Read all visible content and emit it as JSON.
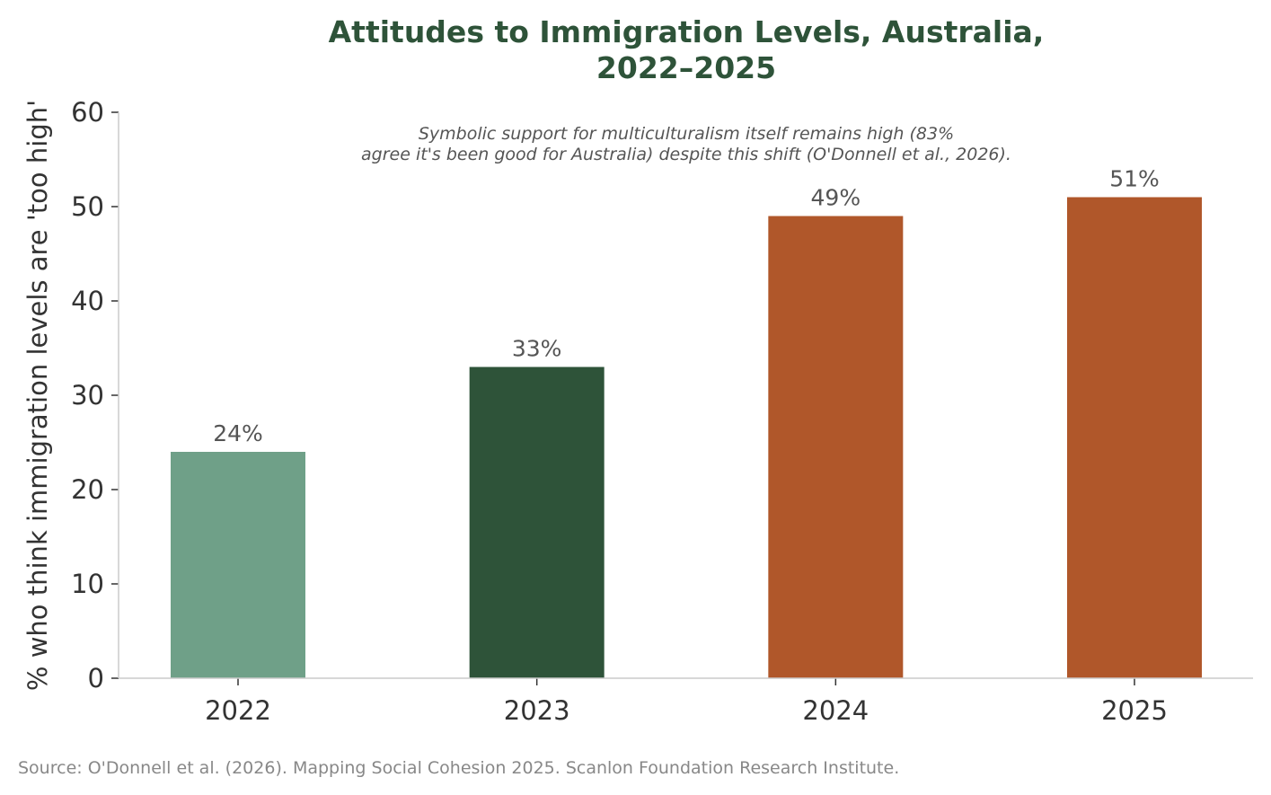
{
  "chart_data": {
    "type": "bar",
    "title_lines": [
      "Attitudes to Immigration Levels, Australia,",
      "2022–2025"
    ],
    "annotation_lines": [
      "Symbolic support for multiculturalism itself remains high (83%",
      "agree it's been good for Australia) despite this shift (O'Donnell et al., 2026)."
    ],
    "categories": [
      "2022",
      "2023",
      "2024",
      "2025"
    ],
    "values": [
      24,
      33,
      49,
      51
    ],
    "data_labels": [
      "24%",
      "33%",
      "49%",
      "51%"
    ],
    "colors": [
      "#6fa088",
      "#2e5339",
      "#b0572a",
      "#b0572a"
    ],
    "ylabel": "% who think immigration levels are 'too high'",
    "xlabel": "",
    "ylim": [
      0,
      60
    ],
    "yticks": [
      "0",
      "10",
      "20",
      "30",
      "40",
      "50",
      "60"
    ],
    "grid": false,
    "source": "Source: O'Donnell et al. (2026). Mapping Social Cohesion 2025. Scanlon Foundation Research Institute."
  }
}
